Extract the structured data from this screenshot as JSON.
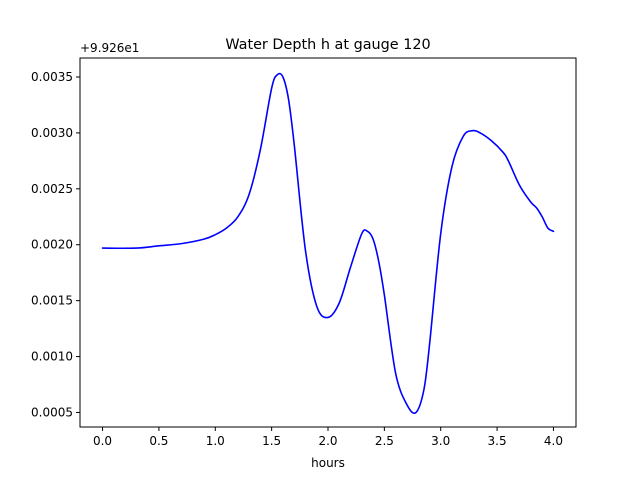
{
  "chart_data": {
    "type": "line",
    "title": "Water Depth h at gauge 120",
    "xlabel": "hours",
    "ylabel": "",
    "offset_text": "+9.926e1",
    "xlim": [
      -0.2,
      4.2
    ],
    "ylim": [
      0.00037,
      0.00367
    ],
    "xticks": [
      0.0,
      0.5,
      1.0,
      1.5,
      2.0,
      2.5,
      3.0,
      3.5,
      4.0
    ],
    "xtick_labels": [
      "0.0",
      "0.5",
      "1.0",
      "1.5",
      "2.0",
      "2.5",
      "3.0",
      "3.5",
      "4.0"
    ],
    "yticks": [
      0.0005,
      0.001,
      0.0015,
      0.002,
      0.0025,
      0.003,
      0.0035
    ],
    "ytick_labels": [
      "0.0005",
      "0.0010",
      "0.0015",
      "0.0020",
      "0.0025",
      "0.0030",
      "0.0035"
    ],
    "grid": false,
    "series": [
      {
        "color": "#0000ff",
        "x": [
          0.0,
          0.3,
          0.5,
          0.7,
          0.9,
          1.0,
          1.1,
          1.2,
          1.3,
          1.4,
          1.5,
          1.55,
          1.6,
          1.65,
          1.7,
          1.8,
          1.9,
          2.0,
          2.1,
          2.2,
          2.3,
          2.35,
          2.4,
          2.45,
          2.5,
          2.6,
          2.7,
          2.78,
          2.85,
          2.9,
          3.0,
          3.1,
          3.2,
          3.28,
          3.35,
          3.45,
          3.55,
          3.6,
          3.7,
          3.8,
          3.85,
          3.9,
          3.95,
          4.0
        ],
        "y": [
          0.00197,
          0.00197,
          0.00199,
          0.00201,
          0.00205,
          0.00209,
          0.00215,
          0.00225,
          0.00245,
          0.00285,
          0.0034,
          0.00352,
          0.0035,
          0.0033,
          0.0029,
          0.00195,
          0.00145,
          0.00135,
          0.00148,
          0.0018,
          0.0021,
          0.00212,
          0.00205,
          0.00185,
          0.00155,
          0.00085,
          0.00057,
          0.0005,
          0.0007,
          0.0011,
          0.0021,
          0.0027,
          0.00297,
          0.00302,
          0.003,
          0.00293,
          0.00283,
          0.00275,
          0.00253,
          0.00238,
          0.00233,
          0.00225,
          0.00215,
          0.00212
        ]
      }
    ]
  }
}
